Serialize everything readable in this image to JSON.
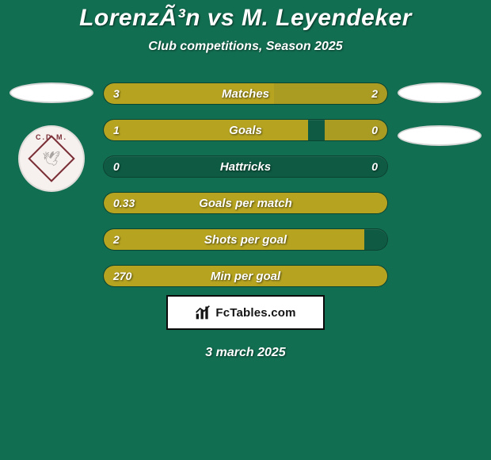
{
  "background_color": "#126e51",
  "text_color": "#ffffff",
  "title": "LorenzÃ³n vs M. Leyendeker",
  "title_fontsize": 30,
  "subtitle": "Club competitions, Season 2025",
  "subtitle_fontsize": 16,
  "date": "3 march 2025",
  "brand": {
    "text": "FcTables.com",
    "border_color": "#0b0b0b",
    "bg": "#ffffff",
    "text_color": "#141414"
  },
  "left_crest": {
    "arc_text": "C.D.M.",
    "border_color": "#7a2c34"
  },
  "bars": {
    "track_bg": "rgba(0,0,0,0.18)",
    "left_color": "#b6a421",
    "right_color": "#aa9b22",
    "rows": [
      {
        "label": "Matches",
        "left": "3",
        "right": "2",
        "left_pct": 60,
        "right_pct": 40
      },
      {
        "label": "Goals",
        "left": "1",
        "right": "0",
        "left_pct": 72,
        "right_pct": 22
      },
      {
        "label": "Hattricks",
        "left": "0",
        "right": "0",
        "left_pct": 0,
        "right_pct": 0
      },
      {
        "label": "Goals per match",
        "left": "0.33",
        "right": "",
        "left_pct": 100,
        "right_pct": 0
      },
      {
        "label": "Shots per goal",
        "left": "2",
        "right": "",
        "left_pct": 92,
        "right_pct": 0
      },
      {
        "label": "Min per goal",
        "left": "270",
        "right": "",
        "left_pct": 100,
        "right_pct": 0
      }
    ]
  }
}
